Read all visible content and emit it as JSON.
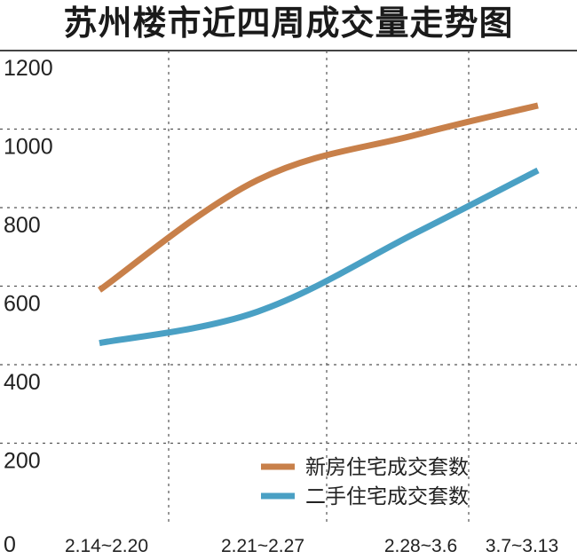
{
  "chart_data": {
    "type": "line",
    "title": "苏州楼市近四周成交量走势图",
    "xlabel": "",
    "ylabel": "",
    "categories": [
      "2.14~2.20",
      "2.21~2.27",
      "2.28~3.6",
      "3.7~3.13"
    ],
    "yticks": [
      "0",
      "200",
      "400",
      "600",
      "800",
      "1000",
      "1200"
    ],
    "ylim": [
      0,
      1200
    ],
    "grid": "dashed",
    "legend_position": "bottom-right",
    "series": [
      {
        "name": "新房住宅成交套数",
        "color": "#c8804a",
        "values": [
          590,
          870,
          985,
          1060
        ]
      },
      {
        "name": "二手住宅成交套数",
        "color": "#4aa0c4",
        "values": [
          455,
          535,
          735,
          895
        ]
      }
    ]
  }
}
